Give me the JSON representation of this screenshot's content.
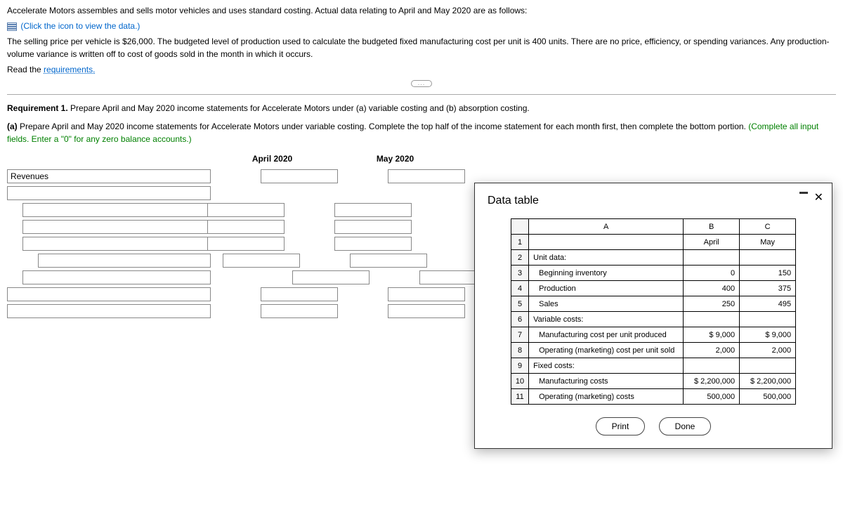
{
  "intro": {
    "line1": "Accelerate Motors assembles and sells motor vehicles and uses standard costing. Actual data relating to April and May 2020 are as follows:",
    "click_icon": "(Click the icon to view the data.)",
    "line2": "The selling price per vehicle is $26,000. The budgeted level of production used to calculate the budgeted fixed manufacturing cost per unit is 400 units. There are no price, efficiency, or spending variances. Any production-volume variance is written off to cost of goods sold in the month in which it occurs.",
    "read_req_prefix": "Read the ",
    "read_req_link": "requirements."
  },
  "req": {
    "title": "Requirement 1. ",
    "title_rest": "Prepare April and May 2020 income statements for Accelerate Motors under (a) variable costing and (b) absorption costing.",
    "a_bold": "(a) ",
    "a_rest": "Prepare April and May 2020 income statements for Accelerate Motors under variable costing. Complete the top half of the income statement for each month first, then complete the bottom portion. ",
    "a_green": "(Complete all input fields. Enter a \"0\" for any zero balance accounts.)"
  },
  "worksheet": {
    "col1": "April 2020",
    "col2": "May 2020",
    "row1": "Revenues"
  },
  "modal": {
    "title": "Data table",
    "headers": {
      "a": "A",
      "b": "B",
      "c": "C"
    },
    "rows": [
      {
        "n": "1",
        "a": "",
        "b": "April",
        "c": "May",
        "hdr": true
      },
      {
        "n": "2",
        "a": "Unit data:",
        "b": "",
        "c": ""
      },
      {
        "n": "3",
        "a": "Beginning inventory",
        "b": "0",
        "c": "150",
        "indent": true
      },
      {
        "n": "4",
        "a": "Production",
        "b": "400",
        "c": "375",
        "indent": true
      },
      {
        "n": "5",
        "a": "Sales",
        "b": "250",
        "c": "495",
        "indent": true
      },
      {
        "n": "6",
        "a": "Variable costs:",
        "b": "",
        "c": ""
      },
      {
        "n": "7",
        "a": "Manufacturing cost per unit produced",
        "b": "$       9,000",
        "c": "$       9,000",
        "indent": true
      },
      {
        "n": "8",
        "a": "Operating (marketing) cost per unit sold",
        "b": "2,000",
        "c": "2,000",
        "indent": true
      },
      {
        "n": "9",
        "a": "Fixed costs:",
        "b": "",
        "c": ""
      },
      {
        "n": "10",
        "a": "Manufacturing costs",
        "b": "$  2,200,000",
        "c": "$  2,200,000",
        "indent": true
      },
      {
        "n": "11",
        "a": "Operating (marketing) costs",
        "b": "500,000",
        "c": "500,000",
        "indent": true
      }
    ],
    "print": "Print",
    "done": "Done"
  }
}
